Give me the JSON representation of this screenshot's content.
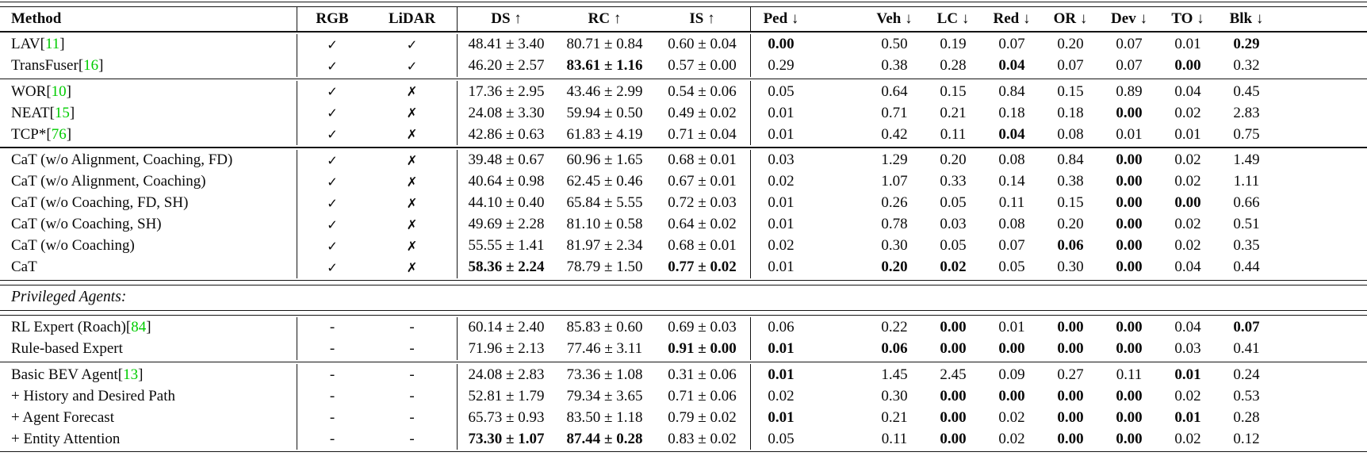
{
  "colors": {
    "citation_green": "#00CC00",
    "ink": "#0a0a0a"
  },
  "symbols": {
    "check": "✓",
    "cross": "✗",
    "dash": "-"
  },
  "table": {
    "cite_open": " [",
    "cite_close": "]",
    "columns": [
      {
        "key": "method",
        "label": "Method"
      },
      {
        "key": "rgb",
        "label": "RGB"
      },
      {
        "key": "lidar",
        "label": "LiDAR"
      },
      {
        "key": "ds",
        "label": "DS ↑"
      },
      {
        "key": "rc",
        "label": "RC ↑"
      },
      {
        "key": "is",
        "label": "IS ↑"
      },
      {
        "key": "ped",
        "label": "Ped ↓"
      },
      {
        "key": "veh",
        "label": "Veh ↓"
      },
      {
        "key": "lc",
        "label": "LC ↓"
      },
      {
        "key": "red",
        "label": "Red ↓"
      },
      {
        "key": "or",
        "label": "OR ↓"
      },
      {
        "key": "dev",
        "label": "Dev ↓"
      },
      {
        "key": "to",
        "label": "TO ↓"
      },
      {
        "key": "blk",
        "label": "Blk ↓"
      }
    ],
    "sections": [
      {
        "rule_after": "single",
        "rows": [
          {
            "method": "LAV",
            "cite": "11",
            "rgb": "check",
            "lidar": "check",
            "ds": "48.41 ± 3.40",
            "rc": "80.71 ± 0.84",
            "is": "0.60 ± 0.04",
            "ped": "0.00",
            "veh": "0.50",
            "lc": "0.19",
            "red": "0.07",
            "or": "0.20",
            "dev": "0.07",
            "to": "0.01",
            "blk": "0.29",
            "bold": [
              "ped",
              "blk"
            ]
          },
          {
            "method": "TransFuser",
            "cite": "16",
            "rgb": "check",
            "lidar": "check",
            "ds": "46.20 ± 2.57",
            "rc": "83.61 ± 1.16",
            "is": "0.57 ± 0.00",
            "ped": "0.29",
            "veh": "0.38",
            "lc": "0.28",
            "red": "0.04",
            "or": "0.07",
            "dev": "0.07",
            "to": "0.00",
            "blk": "0.32",
            "bold": [
              "rc",
              "red",
              "to"
            ]
          }
        ]
      },
      {
        "rule_after": "single",
        "rows": [
          {
            "method": "WOR",
            "cite": "10",
            "rgb": "check",
            "lidar": "cross",
            "ds": "17.36 ± 2.95",
            "rc": "43.46 ± 2.99",
            "is": "0.54 ± 0.06",
            "ped": "0.05",
            "veh": "0.64",
            "lc": "0.15",
            "red": "0.84",
            "or": "0.15",
            "dev": "0.89",
            "to": "0.04",
            "blk": "0.45",
            "bold": []
          },
          {
            "method": "NEAT",
            "cite": "15",
            "rgb": "check",
            "lidar": "cross",
            "ds": "24.08 ± 3.30",
            "rc": "59.94 ± 0.50",
            "is": "0.49 ± 0.02",
            "ped": "0.01",
            "veh": "0.71",
            "lc": "0.21",
            "red": "0.18",
            "or": "0.18",
            "dev": "0.00",
            "to": "0.02",
            "blk": "2.83",
            "bold": [
              "dev"
            ]
          },
          {
            "method": "TCP*",
            "cite": "76",
            "rgb": "check",
            "lidar": "cross",
            "ds": "42.86 ± 0.63",
            "rc": "61.83 ± 4.19",
            "is": "0.71 ± 0.04",
            "ped": "0.01",
            "veh": "0.42",
            "lc": "0.11",
            "red": "0.04",
            "or": "0.08",
            "dev": "0.01",
            "to": "0.01",
            "blk": "0.75",
            "bold": [
              "red"
            ]
          }
        ]
      },
      {
        "rule_after": "double",
        "rows": [
          {
            "method": "CaT (w/o Alignment, Coaching, FD)",
            "cite": null,
            "rgb": "check",
            "lidar": "cross",
            "ds": "39.48 ± 0.67",
            "rc": "60.96 ± 1.65",
            "is": "0.68 ± 0.01",
            "ped": "0.03",
            "veh": "1.29",
            "lc": "0.20",
            "red": "0.08",
            "or": "0.84",
            "dev": "0.00",
            "to": "0.02",
            "blk": "1.49",
            "bold": [
              "dev"
            ]
          },
          {
            "method": "CaT (w/o Alignment, Coaching)",
            "cite": null,
            "rgb": "check",
            "lidar": "cross",
            "ds": "40.64 ± 0.98",
            "rc": "62.45 ± 0.46",
            "is": "0.67 ± 0.01",
            "ped": "0.02",
            "veh": "1.07",
            "lc": "0.33",
            "red": "0.14",
            "or": "0.38",
            "dev": "0.00",
            "to": "0.02",
            "blk": "1.11",
            "bold": [
              "dev"
            ]
          },
          {
            "method": "CaT (w/o Coaching, FD, SH)",
            "cite": null,
            "rgb": "check",
            "lidar": "cross",
            "ds": "44.10 ± 0.40",
            "rc": "65.84 ± 5.55",
            "is": "0.72 ± 0.03",
            "ped": "0.01",
            "veh": "0.26",
            "lc": "0.05",
            "red": "0.11",
            "or": "0.15",
            "dev": "0.00",
            "to": "0.00",
            "blk": "0.66",
            "bold": [
              "dev",
              "to"
            ]
          },
          {
            "method": "CaT (w/o Coaching, SH)",
            "cite": null,
            "rgb": "check",
            "lidar": "cross",
            "ds": "49.69 ± 2.28",
            "rc": "81.10 ± 0.58",
            "is": "0.64 ± 0.02",
            "ped": "0.01",
            "veh": "0.78",
            "lc": "0.03",
            "red": "0.08",
            "or": "0.20",
            "dev": "0.00",
            "to": "0.02",
            "blk": "0.51",
            "bold": [
              "dev"
            ]
          },
          {
            "method": "CaT (w/o Coaching)",
            "cite": null,
            "rgb": "check",
            "lidar": "cross",
            "ds": "55.55 ± 1.41",
            "rc": "81.97 ± 2.34",
            "is": "0.68 ± 0.01",
            "ped": "0.02",
            "veh": "0.30",
            "lc": "0.05",
            "red": "0.07",
            "or": "0.06",
            "dev": "0.00",
            "to": "0.02",
            "blk": "0.35",
            "bold": [
              "or",
              "dev"
            ]
          },
          {
            "method": "CaT",
            "cite": null,
            "rgb": "check",
            "lidar": "cross",
            "ds": "58.36 ± 2.24",
            "rc": "78.79 ± 1.50",
            "is": "0.77 ± 0.02",
            "ped": "0.01",
            "veh": "0.20",
            "lc": "0.02",
            "red": "0.05",
            "or": "0.30",
            "dev": "0.00",
            "to": "0.04",
            "blk": "0.44",
            "bold": [
              "ds",
              "is",
              "veh",
              "lc",
              "dev"
            ]
          }
        ]
      },
      {
        "rule_after": "double",
        "heading": "Privileged Agents:"
      },
      {
        "rule_after": "single",
        "rows": [
          {
            "method": "RL Expert (Roach)",
            "cite": "84",
            "rgb": "dash",
            "lidar": "dash",
            "ds": "60.14 ± 2.40",
            "rc": "85.83 ± 0.60",
            "is": "0.69 ± 0.03",
            "ped": "0.06",
            "veh": "0.22",
            "lc": "0.00",
            "red": "0.01",
            "or": "0.00",
            "dev": "0.00",
            "to": "0.04",
            "blk": "0.07",
            "bold": [
              "lc",
              "or",
              "dev",
              "blk"
            ]
          },
          {
            "method": "Rule-based Expert",
            "cite": null,
            "rgb": "dash",
            "lidar": "dash",
            "ds": "71.96 ± 2.13",
            "rc": "77.46 ± 3.11",
            "is": "0.91 ± 0.00",
            "ped": "0.01",
            "veh": "0.06",
            "lc": "0.00",
            "red": "0.00",
            "or": "0.00",
            "dev": "0.00",
            "to": "0.03",
            "blk": "0.41",
            "bold": [
              "is",
              "ped",
              "veh",
              "lc",
              "red",
              "or",
              "dev"
            ]
          }
        ]
      },
      {
        "rule_after": "double",
        "rows": [
          {
            "method": "Basic BEV Agent",
            "cite": "13",
            "rgb": "dash",
            "lidar": "dash",
            "ds": "24.08 ± 2.83",
            "rc": "73.36 ± 1.08",
            "is": "0.31 ± 0.06",
            "ped": "0.01",
            "veh": "1.45",
            "lc": "2.45",
            "red": "0.09",
            "or": "0.27",
            "dev": "0.11",
            "to": "0.01",
            "blk": "0.24",
            "bold": [
              "ped",
              "to"
            ]
          },
          {
            "method": "+ History and Desired Path",
            "cite": null,
            "rgb": "dash",
            "lidar": "dash",
            "ds": "52.81 ± 1.79",
            "rc": "79.34 ± 3.65",
            "is": "0.71 ± 0.06",
            "ped": "0.02",
            "veh": "0.30",
            "lc": "0.00",
            "red": "0.00",
            "or": "0.00",
            "dev": "0.00",
            "to": "0.02",
            "blk": "0.53",
            "bold": [
              "lc",
              "red",
              "or",
              "dev"
            ]
          },
          {
            "method": "+ Agent Forecast",
            "cite": null,
            "rgb": "dash",
            "lidar": "dash",
            "ds": "65.73 ± 0.93",
            "rc": "83.50 ± 1.18",
            "is": "0.79 ± 0.02",
            "ped": "0.01",
            "veh": "0.21",
            "lc": "0.00",
            "red": "0.02",
            "or": "0.00",
            "dev": "0.00",
            "to": "0.01",
            "blk": "0.28",
            "bold": [
              "ped",
              "lc",
              "or",
              "dev",
              "to"
            ]
          },
          {
            "method": "+ Entity Attention",
            "cite": null,
            "rgb": "dash",
            "lidar": "dash",
            "ds": "73.30 ± 1.07",
            "rc": "87.44 ± 0.28",
            "is": "0.83 ± 0.02",
            "ped": "0.05",
            "veh": "0.11",
            "lc": "0.00",
            "red": "0.02",
            "or": "0.00",
            "dev": "0.00",
            "to": "0.02",
            "blk": "0.12",
            "bold": [
              "ds",
              "rc",
              "lc",
              "or",
              "dev"
            ]
          }
        ]
      }
    ]
  }
}
